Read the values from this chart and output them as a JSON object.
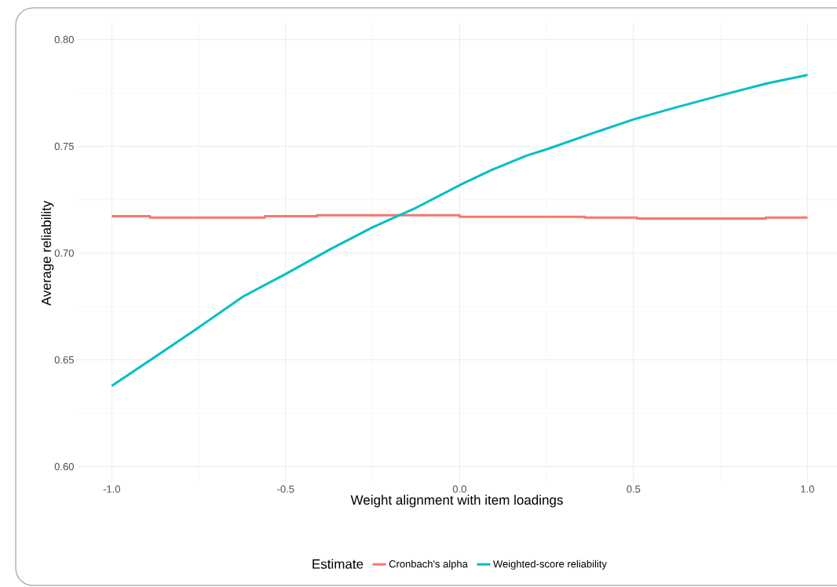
{
  "chart_data": {
    "type": "line",
    "xlabel": "Weight alignment with item loadings",
    "ylabel": "Average reliability",
    "legend_title": "Estimate",
    "xlim": [
      -1.1,
      1.085
    ],
    "ylim": [
      0.5925,
      0.8075
    ],
    "xticks": [
      {
        "value": -1,
        "label": "-1.0"
      },
      {
        "value": -0.5,
        "label": "-0.5"
      },
      {
        "value": 0,
        "label": "0.0"
      },
      {
        "value": 0.5,
        "label": "0.5"
      },
      {
        "value": 1,
        "label": "1.0"
      }
    ],
    "yticks": [
      {
        "value": 0.6,
        "label": "0.60"
      },
      {
        "value": 0.65,
        "label": "0.65"
      },
      {
        "value": 0.7,
        "label": "0.70"
      },
      {
        "value": 0.75,
        "label": "0.75"
      },
      {
        "value": 0.8,
        "label": "0.80"
      }
    ],
    "grid": true,
    "legend": "bottom",
    "series": [
      {
        "name": "Cronbach's alpha",
        "color": "#f8766d",
        "x": [
          -1,
          -0.89,
          -0.89,
          -0.56,
          -0.56,
          -0.41,
          -0.41,
          0.0,
          0.0,
          0.36,
          0.36,
          0.51,
          0.51,
          0.88,
          0.88,
          1.0
        ],
        "values": [
          0.7173,
          0.7173,
          0.7166,
          0.7166,
          0.7173,
          0.7173,
          0.7177,
          0.7177,
          0.717,
          0.717,
          0.7166,
          0.7166,
          0.7162,
          0.7162,
          0.7166,
          0.7166
        ]
      },
      {
        "name": "Weighted-score reliability",
        "color": "#00bfc4",
        "x": [
          -1,
          -0.877,
          -0.75,
          -0.621,
          -0.5,
          -0.372,
          -0.25,
          -0.124,
          0.0,
          0.092,
          0.192,
          0.252,
          0.38,
          0.502,
          0.622,
          0.752,
          0.884,
          1.0
        ],
        "values": [
          0.6378,
          0.6512,
          0.6652,
          0.6798,
          0.6902,
          0.7018,
          0.7121,
          0.7213,
          0.7318,
          0.7389,
          0.7456,
          0.7487,
          0.756,
          0.7627,
          0.7682,
          0.7739,
          0.7795,
          0.7834
        ]
      }
    ]
  }
}
